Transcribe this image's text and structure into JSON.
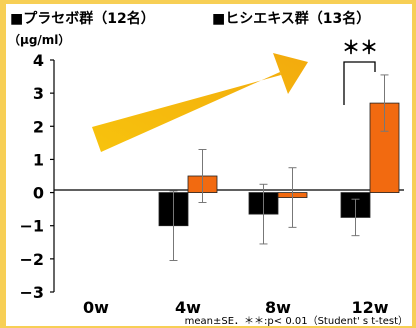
{
  "chart_data": {
    "type": "bar",
    "ylabel": "（μg/ml）",
    "ylim": [
      -3,
      4
    ],
    "yticks": [
      "4",
      "3",
      "2",
      "1",
      "0",
      "−1",
      "−2",
      "−3"
    ],
    "categories": [
      "0w",
      "4w",
      "8w",
      "12w"
    ],
    "series": [
      {
        "name": "■プラセボ群（12名）",
        "color": "#000000",
        "values": [
          null,
          -1.0,
          -0.65,
          -0.75
        ],
        "errors": [
          null,
          1.05,
          0.9,
          0.55
        ]
      },
      {
        "name": "■ヒシエキス群（13名）",
        "color": "#f26a10",
        "values": [
          null,
          0.5,
          -0.15,
          2.7
        ],
        "errors": [
          null,
          0.8,
          0.9,
          0.85
        ]
      }
    ],
    "significance": {
      "category": "12w",
      "label": "＊＊"
    },
    "note": "mean±SE．＊＊:p< 0.01（Student' s t-test）",
    "arrow_color": "#f5b400"
  }
}
